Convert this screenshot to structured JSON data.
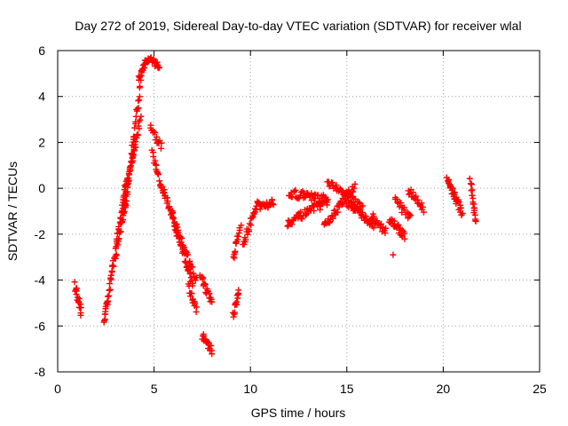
{
  "chart_data": {
    "type": "scatter",
    "title": "Day 272 of 2019, Sidereal Day-to-day VTEC variation (SDTVAR) for receiver wlal",
    "xlabel": "GPS time / hours",
    "ylabel": "SDTVAR / TECUs",
    "xlim": [
      0,
      25
    ],
    "ylim": [
      -8,
      6
    ],
    "xticks": [
      0,
      5,
      10,
      15,
      20,
      25
    ],
    "yticks": [
      -8,
      -6,
      -4,
      -2,
      0,
      2,
      4,
      6
    ],
    "grid": true,
    "marker": "+",
    "color": "#ff0000",
    "series": [
      {
        "name": "SDTVAR",
        "segments": [
          {
            "x0": 0.9,
            "x1": 1.2,
            "y0": -4.2,
            "y1": -5.4,
            "n": 20
          },
          {
            "x0": 2.4,
            "x1": 2.7,
            "y0": -5.8,
            "y1": -4.3,
            "n": 20
          },
          {
            "x0": 2.7,
            "x1": 3.6,
            "y0": -4.2,
            "y1": 0.5,
            "n": 45
          },
          {
            "x0": 3.0,
            "x1": 4.0,
            "y0": -3.0,
            "y1": 2.0,
            "n": 40
          },
          {
            "x0": 3.4,
            "x1": 4.3,
            "y0": -1.5,
            "y1": 4.6,
            "n": 40
          },
          {
            "x0": 3.8,
            "x1": 4.3,
            "y0": 1.0,
            "y1": 3.0,
            "n": 20
          },
          {
            "x0": 4.2,
            "x1": 4.7,
            "y0": 4.8,
            "y1": 5.7,
            "n": 20
          },
          {
            "x0": 4.7,
            "x1": 5.3,
            "y0": 5.7,
            "y1": 5.3,
            "n": 20
          },
          {
            "x0": 4.8,
            "x1": 5.4,
            "y0": 2.7,
            "y1": 1.8,
            "n": 15
          },
          {
            "x0": 4.9,
            "x1": 5.5,
            "y0": 1.5,
            "y1": -0.3,
            "n": 20
          },
          {
            "x0": 5.5,
            "x1": 7.0,
            "y0": -0.1,
            "y1": -4.2,
            "n": 55
          },
          {
            "x0": 5.8,
            "x1": 7.2,
            "y0": -0.8,
            "y1": -4.0,
            "n": 40
          },
          {
            "x0": 6.8,
            "x1": 7.2,
            "y0": -4.3,
            "y1": -5.3,
            "n": 15
          },
          {
            "x0": 7.4,
            "x1": 8.0,
            "y0": -3.8,
            "y1": -5.0,
            "n": 20
          },
          {
            "x0": 7.5,
            "x1": 8.0,
            "y0": -6.4,
            "y1": -7.1,
            "n": 20
          },
          {
            "x0": 9.1,
            "x1": 9.4,
            "y0": -5.6,
            "y1": -4.4,
            "n": 15
          },
          {
            "x0": 9.1,
            "x1": 9.5,
            "y0": -3.1,
            "y1": -1.6,
            "n": 15
          },
          {
            "x0": 9.6,
            "x1": 10.4,
            "y0": -2.5,
            "y1": -0.6,
            "n": 25
          },
          {
            "x0": 10.4,
            "x1": 11.2,
            "y0": -0.8,
            "y1": -0.6,
            "n": 25
          },
          {
            "x0": 11.9,
            "x1": 14.0,
            "y0": -1.5,
            "y1": -0.6,
            "n": 50
          },
          {
            "x0": 12.0,
            "x1": 14.0,
            "y0": -0.2,
            "y1": -0.5,
            "n": 45
          },
          {
            "x0": 13.8,
            "x1": 15.4,
            "y0": -1.7,
            "y1": 0.1,
            "n": 45
          },
          {
            "x0": 14.0,
            "x1": 15.8,
            "y0": 0.3,
            "y1": -0.8,
            "n": 40
          },
          {
            "x0": 15.0,
            "x1": 16.4,
            "y0": -0.6,
            "y1": -1.6,
            "n": 40
          },
          {
            "x0": 16.3,
            "x1": 17.0,
            "y0": -1.2,
            "y1": -1.9,
            "n": 20
          },
          {
            "x0": 17.2,
            "x1": 18.0,
            "y0": -1.3,
            "y1": -2.1,
            "n": 25
          },
          {
            "x0": 17.5,
            "x1": 18.3,
            "y0": -0.5,
            "y1": -1.3,
            "n": 20
          },
          {
            "x0": 18.2,
            "x1": 19.0,
            "y0": -0.1,
            "y1": -0.9,
            "n": 20
          },
          {
            "x0": 20.2,
            "x1": 21.0,
            "y0": 0.4,
            "y1": -1.1,
            "n": 35
          },
          {
            "x0": 21.4,
            "x1": 21.7,
            "y0": 0.4,
            "y1": -1.5,
            "n": 20
          },
          {
            "x0": 17.4,
            "x1": 17.4,
            "y0": -2.9,
            "y1": -2.9,
            "n": 1
          }
        ]
      }
    ]
  }
}
